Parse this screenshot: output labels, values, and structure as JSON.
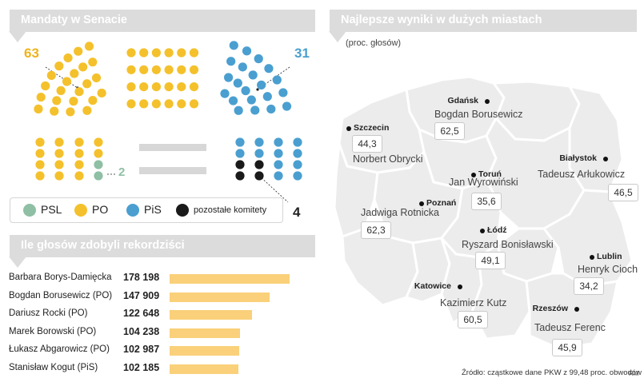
{
  "colors": {
    "psl": "#8fbfa4",
    "po": "#f4c12c",
    "pis": "#4a9fd0",
    "other": "#1a1a1a",
    "bar": "#fad07a",
    "po_text": "#f0b21c",
    "pis_text": "#4a9fd0"
  },
  "senate": {
    "title": "Mandaty w Senacie",
    "po_count": "63",
    "pis_count": "31",
    "psl_count": "2",
    "other_count": "4",
    "legend": [
      {
        "key": "psl",
        "label": "PSL"
      },
      {
        "key": "po",
        "label": "PO"
      },
      {
        "key": "pis",
        "label": "PiS"
      },
      {
        "key": "other",
        "label": "pozostałe komitety"
      }
    ]
  },
  "records": {
    "title": "Ile głosów zdobyli rekordziści"
  },
  "cities": {
    "title": "Najlepsze wyniki w dużych miastach",
    "subtitle": "(proc. głosów)",
    "source": "Źródło: cząstkowe dane PKW z 99,48 proc. obwodów",
    "credit": "RM"
  },
  "chart_data": [
    {
      "type": "bar",
      "title": "Ile głosów zdobyli rekordziści",
      "orientation": "horizontal",
      "categories": [
        "Barbara Borys-Damięcka",
        "Bogdan Borusewicz (PO)",
        "Dariusz Rocki (PO)",
        "Marek Borowski (PO)",
        "Łukasz Abgarowicz (PO)",
        "Stanisław Kogut (PiS)"
      ],
      "labels": [
        "178 198",
        "147 909",
        "122 648",
        "104 238",
        "102 987",
        "102 185"
      ],
      "values": [
        178198,
        147909,
        122648,
        104238,
        102987,
        102185
      ],
      "xlim": [
        0,
        190000
      ]
    },
    {
      "type": "table",
      "title": "Najlepsze wyniki w dużych miastach",
      "unit": "proc. głosów",
      "rows": [
        {
          "city": "Gdańsk",
          "candidate": "Bogdan Borusewicz",
          "value": "62,5"
        },
        {
          "city": "Szczecin",
          "candidate": "Norbert Obrycki",
          "value": "44,3"
        },
        {
          "city": "Białystok",
          "candidate": "Tadeusz Arłukowicz",
          "value": "46,5"
        },
        {
          "city": "Toruń",
          "candidate": "Jan Wyrowiński",
          "value": "35,6"
        },
        {
          "city": "Poznań",
          "candidate": "Jadwiga Rotnicka",
          "value": "62,3"
        },
        {
          "city": "Łódź",
          "candidate": "Ryszard Bonisławski",
          "value": "49,1"
        },
        {
          "city": "Lublin",
          "candidate": "Henryk Cioch",
          "value": "34,2"
        },
        {
          "city": "Katowice",
          "candidate": "Kazimierz Kutz",
          "value": "60,5"
        },
        {
          "city": "Rzeszów",
          "candidate": "Tadeusz Ferenc",
          "value": "45,9"
        }
      ]
    }
  ]
}
